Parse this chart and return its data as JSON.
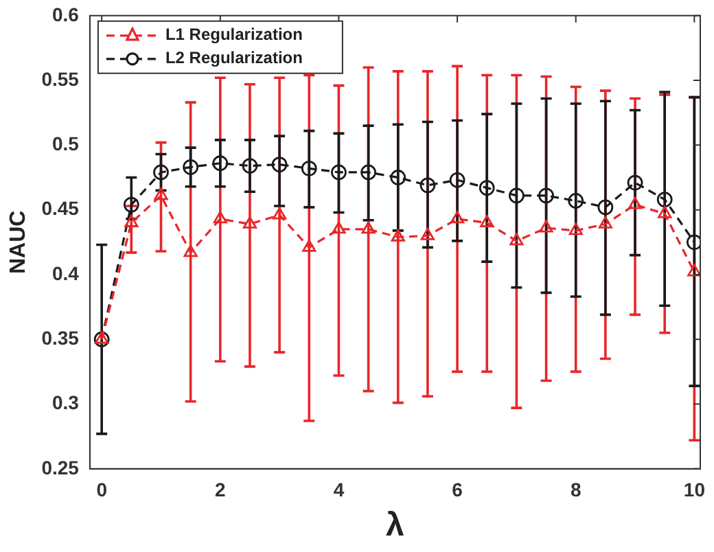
{
  "chart_data": {
    "type": "line",
    "xlabel": "λ",
    "ylabel": "NAUC",
    "x": [
      0,
      0.5,
      1,
      1.5,
      2,
      2.5,
      3,
      3.5,
      4,
      4.5,
      5,
      5.5,
      6,
      6.5,
      7,
      7.5,
      8,
      8.5,
      9,
      9.5,
      10
    ],
    "series": [
      {
        "name": "L1 Regularization",
        "color": "#e8262a",
        "marker": "triangle",
        "line_style": "dashed",
        "values": [
          0.35,
          0.44,
          0.461,
          0.417,
          0.443,
          0.439,
          0.446,
          0.421,
          0.435,
          0.435,
          0.429,
          0.43,
          0.443,
          0.44,
          0.426,
          0.436,
          0.434,
          0.439,
          0.454,
          0.447,
          0.402
        ],
        "errors": [
          null,
          [
            0.417,
            0.453
          ],
          [
            0.418,
            0.502
          ],
          [
            0.302,
            0.533
          ],
          [
            0.333,
            0.552
          ],
          [
            0.329,
            0.547
          ],
          [
            0.34,
            0.552
          ],
          [
            0.287,
            0.554
          ],
          [
            0.322,
            0.546
          ],
          [
            0.31,
            0.56
          ],
          [
            0.301,
            0.557
          ],
          [
            0.306,
            0.557
          ],
          [
            0.325,
            0.561
          ],
          [
            0.325,
            0.554
          ],
          [
            0.297,
            0.554
          ],
          [
            0.318,
            0.553
          ],
          [
            0.325,
            0.545
          ],
          [
            0.335,
            0.542
          ],
          [
            0.369,
            0.536
          ],
          [
            0.355,
            0.539
          ],
          [
            0.272,
            0.537
          ]
        ]
      },
      {
        "name": "L2 Regularization",
        "color": "#1a1a1a",
        "marker": "circle",
        "line_style": "dashed",
        "values": [
          0.35,
          0.454,
          0.479,
          0.483,
          0.486,
          0.484,
          0.485,
          0.482,
          0.479,
          0.479,
          0.475,
          0.469,
          0.473,
          0.467,
          0.461,
          0.461,
          0.457,
          0.452,
          0.471,
          0.458,
          0.425
        ],
        "errors": [
          [
            0.277,
            0.423
          ],
          [
            0.443,
            0.475
          ],
          [
            0.465,
            0.493
          ],
          [
            0.468,
            0.498
          ],
          [
            0.468,
            0.504
          ],
          [
            0.464,
            0.504
          ],
          [
            0.453,
            0.507
          ],
          [
            0.452,
            0.511
          ],
          [
            0.448,
            0.509
          ],
          [
            0.442,
            0.515
          ],
          [
            0.434,
            0.516
          ],
          [
            0.421,
            0.518
          ],
          [
            0.426,
            0.519
          ],
          [
            0.41,
            0.524
          ],
          [
            0.39,
            0.532
          ],
          [
            0.386,
            0.536
          ],
          [
            0.383,
            0.532
          ],
          [
            0.369,
            0.534
          ],
          [
            0.415,
            0.527
          ],
          [
            0.376,
            0.541
          ],
          [
            0.314,
            0.537
          ]
        ]
      }
    ],
    "xlim": [
      -0.2,
      10.1
    ],
    "xticks": [
      0,
      2,
      4,
      6,
      8,
      10
    ],
    "ylim": [
      0.25,
      0.6
    ],
    "yticks": [
      0.25,
      0.3,
      0.35,
      0.4,
      0.45,
      0.5,
      0.55,
      0.6
    ],
    "grid": false,
    "legend": "top left"
  }
}
